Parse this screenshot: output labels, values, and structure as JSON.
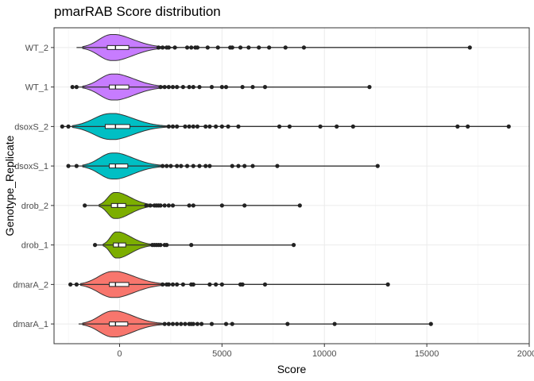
{
  "chart_data": {
    "type": "violin",
    "title": "pmarRAB Score distribution",
    "xlabel": "Score",
    "ylabel": "Genotype_Replicate",
    "xlim": [
      -3200,
      20000
    ],
    "x_ticks": [
      0,
      5000,
      10000,
      15000,
      20000
    ],
    "x_tick_labels": [
      "0",
      "5000",
      "10000",
      "15000",
      "20000"
    ],
    "grid": true,
    "legend": "none",
    "categories": [
      "dmarA_1",
      "dmarA_2",
      "drob_1",
      "drob_2",
      "dsoxS_1",
      "dsoxS_2",
      "WT_1",
      "WT_2"
    ],
    "series": [
      {
        "category": "dmarA_1",
        "color": "#F8766D",
        "min": -2000,
        "q1": -500,
        "median": -200,
        "q3": 400,
        "max": 15200,
        "violin_extent": [
          -1800,
          2300
        ],
        "outliers": [
          2200,
          2400,
          2600,
          2800,
          3000,
          3200,
          3400,
          3500,
          3600,
          3800,
          4000,
          4500,
          5200,
          5500,
          8200,
          10500,
          15200
        ]
      },
      {
        "category": "dmarA_2",
        "color": "#F8766D",
        "min": -2400,
        "q1": -500,
        "median": -200,
        "q3": 450,
        "max": 13100,
        "violin_extent": [
          -1900,
          2200
        ],
        "outliers": [
          -2400,
          -2100,
          2100,
          2300,
          2400,
          2600,
          2800,
          3100,
          3500,
          3600,
          4400,
          4700,
          5000,
          5900,
          6000,
          7100,
          13100
        ]
      },
      {
        "category": "drob_1",
        "color": "#7CAE00",
        "min": -1200,
        "q1": -300,
        "median": -50,
        "q3": 300,
        "max": 8500,
        "violin_extent": [
          -800,
          1800
        ],
        "outliers": [
          -1200,
          1600,
          1700,
          1800,
          1900,
          2000,
          2200,
          2300,
          3500,
          8500
        ]
      },
      {
        "category": "drob_2",
        "color": "#7CAE00",
        "min": -1700,
        "q1": -400,
        "median": -100,
        "q3": 300,
        "max": 8800,
        "violin_extent": [
          -1000,
          1900
        ],
        "outliers": [
          -1700,
          1300,
          1500,
          1700,
          1800,
          1900,
          2000,
          2200,
          2400,
          2600,
          3400,
          3600,
          5000,
          6100,
          8800
        ]
      },
      {
        "category": "dsoxS_1",
        "color": "#00BFC4",
        "min": -2500,
        "q1": -500,
        "median": -200,
        "q3": 400,
        "max": 12600,
        "violin_extent": [
          -1800,
          2200
        ],
        "outliers": [
          -2500,
          -2100,
          2100,
          2300,
          2500,
          2800,
          3000,
          3300,
          3600,
          3900,
          4200,
          4400,
          5500,
          5800,
          6100,
          6500,
          7700,
          12600
        ]
      },
      {
        "category": "dsoxS_2",
        "color": "#00BFC4",
        "min": -2800,
        "q1": -700,
        "median": -200,
        "q3": 500,
        "max": 19000,
        "violin_extent": [
          -2300,
          2700
        ],
        "outliers": [
          -2800,
          -2500,
          2400,
          2600,
          2800,
          3200,
          3400,
          3600,
          3800,
          4200,
          4400,
          4700,
          5000,
          5300,
          5800,
          7800,
          8300,
          9800,
          10600,
          11400,
          16500,
          17000,
          19000
        ]
      },
      {
        "category": "WT_1",
        "color": "#C77CFF",
        "min": -2300,
        "q1": -500,
        "median": -200,
        "q3": 450,
        "max": 12200,
        "violin_extent": [
          -1800,
          2300
        ],
        "outliers": [
          -2300,
          -2100,
          2000,
          2200,
          2400,
          2600,
          2800,
          3100,
          3400,
          3600,
          3900,
          4500,
          5000,
          5200,
          6000,
          6500,
          7100,
          12200
        ]
      },
      {
        "category": "WT_2",
        "color": "#C77CFF",
        "min": -2100,
        "q1": -600,
        "median": -200,
        "q3": 450,
        "max": 17100,
        "violin_extent": [
          -1800,
          2300
        ],
        "outliers": [
          1900,
          2100,
          2300,
          2400,
          2700,
          3300,
          3500,
          3700,
          3800,
          4300,
          4800,
          5400,
          5500,
          5900,
          6300,
          6800,
          7300,
          8100,
          9000,
          17100
        ]
      }
    ]
  }
}
